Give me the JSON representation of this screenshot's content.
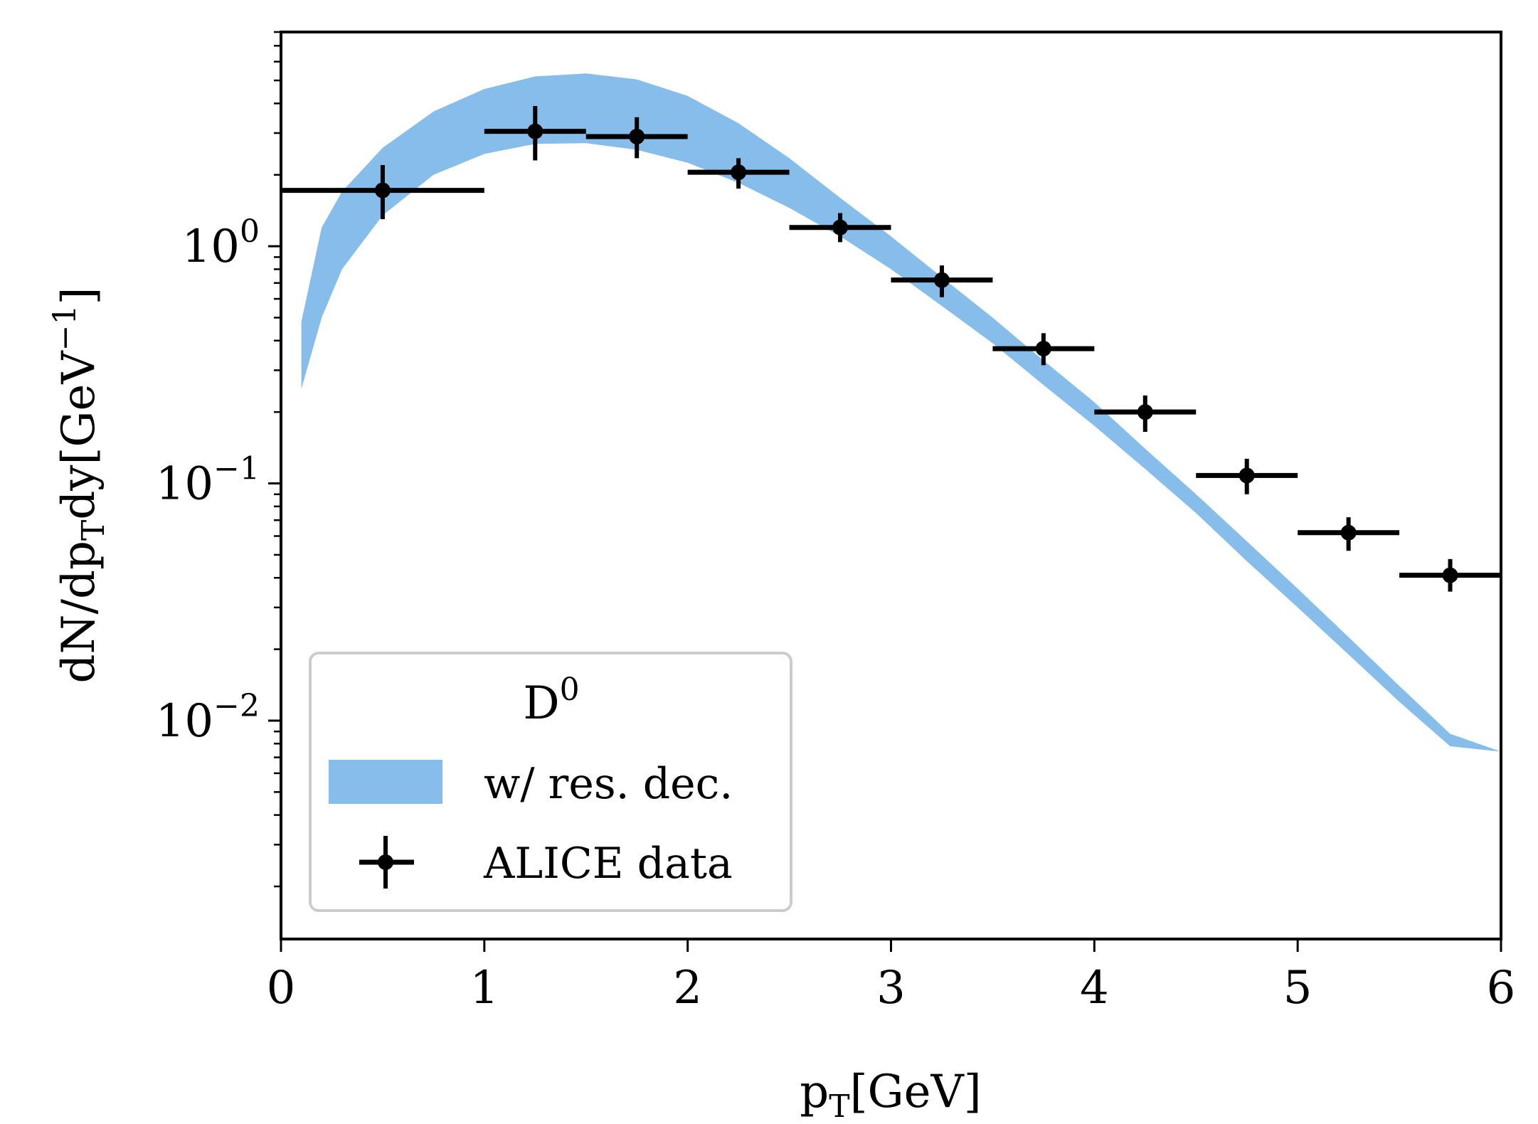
{
  "chart_data": {
    "type": "scatter",
    "xlabel": {
      "main": "p",
      "sub": "T",
      "unit": "[GeV]"
    },
    "ylabel": {
      "pre": "dN/dp",
      "sub": "T",
      "post": "dy[GeV",
      "sup": "−1",
      "close": "]"
    },
    "xlim": [
      0,
      6
    ],
    "ylim": [
      0.0012,
      8
    ],
    "yscale": "log",
    "xticks": [
      {
        "value": 0,
        "label": "0"
      },
      {
        "value": 1,
        "label": "1"
      },
      {
        "value": 2,
        "label": "2"
      },
      {
        "value": 3,
        "label": "3"
      },
      {
        "value": 4,
        "label": "4"
      },
      {
        "value": 5,
        "label": "5"
      },
      {
        "value": 6,
        "label": "6"
      }
    ],
    "yticks": [
      {
        "value": 1,
        "base": "10",
        "exp": "0"
      },
      {
        "value": 0.1,
        "base": "10",
        "exp": "−1"
      },
      {
        "value": 0.01,
        "base": "10",
        "exp": "−2"
      }
    ],
    "legend": {
      "title_base": "D",
      "title_sup": "0",
      "placement": "lower-left"
    },
    "colors": {
      "band": "#87bdea",
      "data": "#000000"
    },
    "series": [
      {
        "name": "w/ res. dec.",
        "kind": "band",
        "x": [
          0.1,
          0.2,
          0.3,
          0.5,
          0.75,
          1.0,
          1.25,
          1.5,
          1.75,
          2.0,
          2.25,
          2.5,
          2.75,
          3.0,
          3.25,
          3.5,
          3.75,
          4.0,
          4.25,
          4.5,
          4.75,
          5.0,
          5.25,
          5.5,
          5.75,
          6.0
        ],
        "lower": [
          0.25,
          0.5,
          0.8,
          1.35,
          2.0,
          2.45,
          2.7,
          2.72,
          2.55,
          2.25,
          1.85,
          1.45,
          1.1,
          0.8,
          0.56,
          0.39,
          0.26,
          0.175,
          0.115,
          0.075,
          0.047,
          0.03,
          0.019,
          0.012,
          0.0078,
          0.0074
        ],
        "upper": [
          0.48,
          1.2,
          1.7,
          2.6,
          3.7,
          4.6,
          5.2,
          5.35,
          5.05,
          4.3,
          3.3,
          2.35,
          1.6,
          1.1,
          0.74,
          0.5,
          0.33,
          0.22,
          0.14,
          0.09,
          0.057,
          0.036,
          0.0225,
          0.014,
          0.0088,
          0.0074
        ]
      },
      {
        "name": "ALICE data",
        "kind": "errorbar",
        "points": [
          {
            "x": 0.5,
            "xerr": 0.5,
            "y": 1.72,
            "ylo": 1.3,
            "yhi": 2.2
          },
          {
            "x": 1.25,
            "xerr": 0.25,
            "y": 3.05,
            "ylo": 2.3,
            "yhi": 3.9
          },
          {
            "x": 1.75,
            "xerr": 0.25,
            "y": 2.9,
            "ylo": 2.35,
            "yhi": 3.5
          },
          {
            "x": 2.25,
            "xerr": 0.25,
            "y": 2.05,
            "ylo": 1.75,
            "yhi": 2.35
          },
          {
            "x": 2.75,
            "xerr": 0.25,
            "y": 1.2,
            "ylo": 1.04,
            "yhi": 1.38
          },
          {
            "x": 3.25,
            "xerr": 0.25,
            "y": 0.72,
            "ylo": 0.61,
            "yhi": 0.83
          },
          {
            "x": 3.75,
            "xerr": 0.25,
            "y": 0.37,
            "ylo": 0.315,
            "yhi": 0.43
          },
          {
            "x": 4.25,
            "xerr": 0.25,
            "y": 0.2,
            "ylo": 0.165,
            "yhi": 0.235
          },
          {
            "x": 4.75,
            "xerr": 0.25,
            "y": 0.108,
            "ylo": 0.09,
            "yhi": 0.127
          },
          {
            "x": 5.25,
            "xerr": 0.25,
            "y": 0.062,
            "ylo": 0.052,
            "yhi": 0.072
          },
          {
            "x": 5.75,
            "xerr": 0.25,
            "y": 0.041,
            "ylo": 0.035,
            "yhi": 0.048
          }
        ]
      }
    ]
  }
}
